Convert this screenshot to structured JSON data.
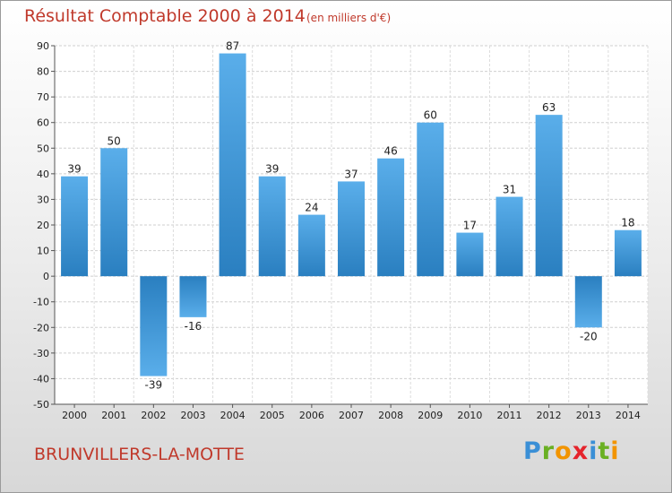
{
  "chart_data": {
    "type": "bar",
    "title": "Résultat Comptable 2000 à 2014",
    "subtitle": "(en milliers d'€)",
    "categories": [
      "2000",
      "2001",
      "2002",
      "2003",
      "2004",
      "2005",
      "2006",
      "2007",
      "2008",
      "2009",
      "2010",
      "2011",
      "2012",
      "2013",
      "2014"
    ],
    "values": [
      39,
      50,
      -39,
      -16,
      87,
      39,
      24,
      37,
      46,
      60,
      17,
      31,
      63,
      -20,
      18
    ],
    "ylim": [
      -50,
      90
    ],
    "yticks": [
      90,
      80,
      70,
      60,
      50,
      40,
      30,
      20,
      10,
      0,
      -10,
      -20,
      -30,
      -40,
      -50
    ],
    "xlabel": "",
    "ylabel": "",
    "grid": true,
    "colors": {
      "bar_top": "#5aaeea",
      "bar_bottom": "#2a7fc0"
    }
  },
  "footer": {
    "commune": "BRUNVILLERS-LA-MOTTE",
    "logo": {
      "letters": [
        "P",
        "r",
        "o",
        "x",
        "i",
        "t",
        "i"
      ],
      "colors": [
        "#3a8fd6",
        "#6ab023",
        "#f29400",
        "#e5242c",
        "#3a8fd6",
        "#6ab023",
        "#f29400"
      ]
    }
  }
}
